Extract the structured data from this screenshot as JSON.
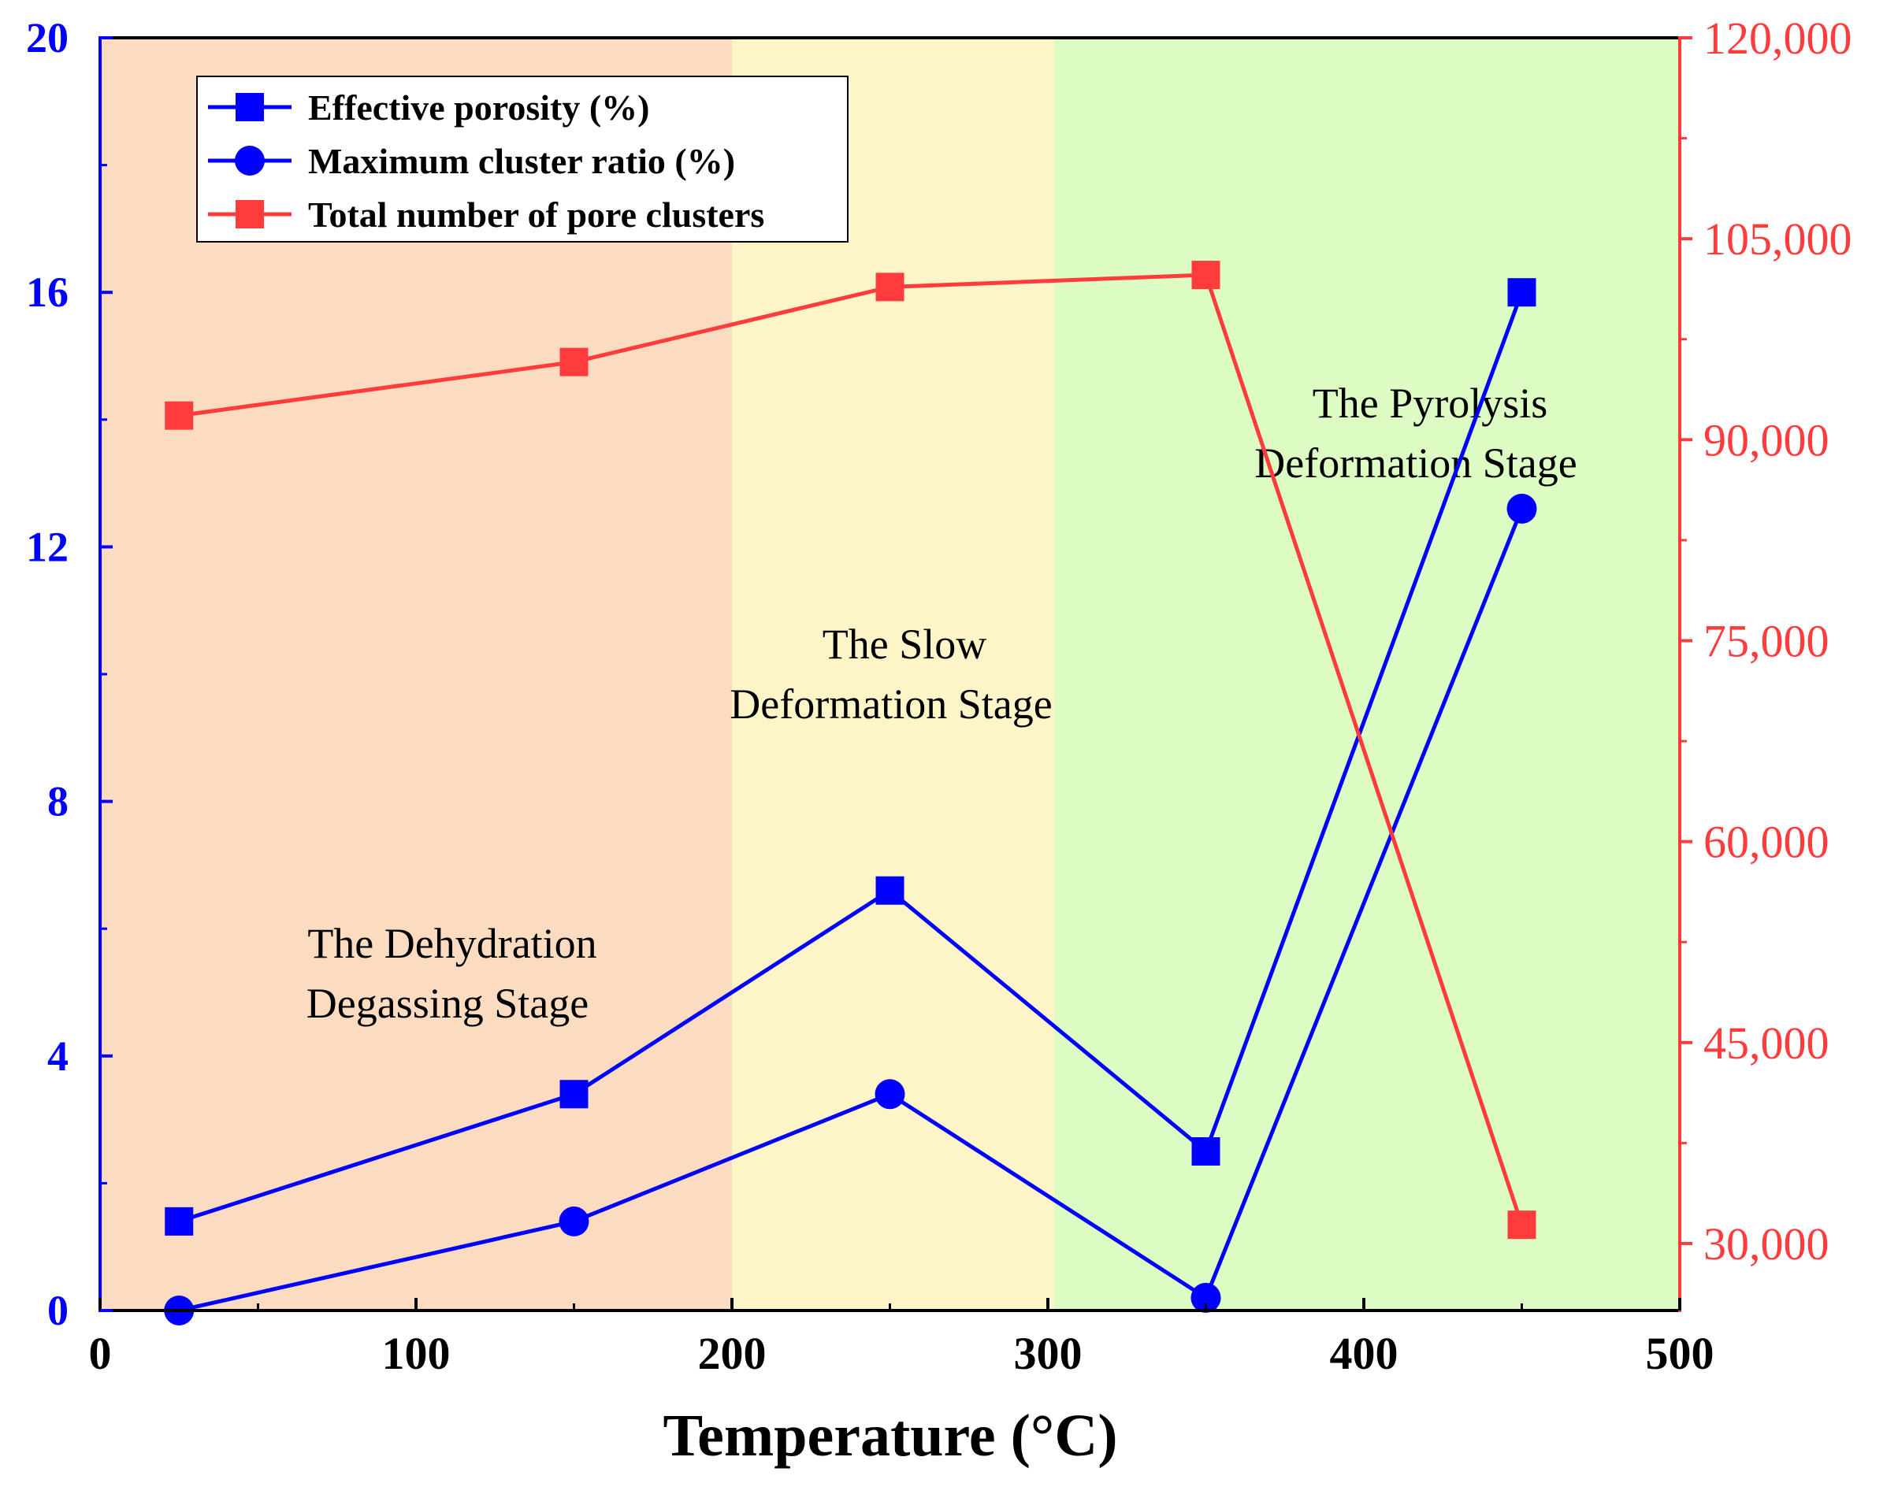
{
  "chart_data": {
    "type": "line",
    "xlabel": "Temperature (°C)",
    "x": [
      25,
      150,
      250,
      350,
      450
    ],
    "xlim": [
      0,
      500
    ],
    "xticks": [
      "0",
      "100",
      "200",
      "300",
      "400",
      "500"
    ],
    "ylim_left": [
      0,
      20
    ],
    "yticks_left": [
      "0",
      "4",
      "8",
      "12",
      "16",
      "20"
    ],
    "ylim_right": [
      25000,
      120000
    ],
    "yticks_right": [
      "30,000",
      "45,000",
      "60,000",
      "75,000",
      "90,000",
      "105,000",
      "120,000"
    ],
    "series": [
      {
        "name": "Effective porosity (%)",
        "axis": "left",
        "marker": "square",
        "color": "#0000ff",
        "values": [
          1.4,
          3.4,
          6.6,
          2.5,
          16.0
        ]
      },
      {
        "name": "Maximum cluster ratio (%)",
        "axis": "left",
        "marker": "circle",
        "color": "#0000ff",
        "values": [
          0.0,
          1.4,
          3.4,
          0.2,
          12.6
        ]
      },
      {
        "name": "Total number of pore clusters",
        "axis": "right",
        "marker": "square",
        "color": "#ff3b3b",
        "values": [
          91800,
          95800,
          101400,
          102300,
          31400
        ]
      }
    ],
    "stages": [
      {
        "label_line1": "The Dehydration",
        "label_line2": "Degassing Stage",
        "x_range": [
          0,
          200
        ],
        "color": "#fcdcc0"
      },
      {
        "label_line1": "The Slow",
        "label_line2": "Deformation Stage",
        "x_range": [
          200,
          302
        ],
        "color": "#fdf5c8"
      },
      {
        "label_line1": "The Pyrolysis",
        "label_line2": "Deformation Stage",
        "x_range": [
          302,
          500
        ],
        "color": "#ddfcc4"
      }
    ],
    "axis_colors": {
      "left": "#0000ff",
      "right": "#ff3b3b",
      "bottom": "#000000"
    }
  }
}
